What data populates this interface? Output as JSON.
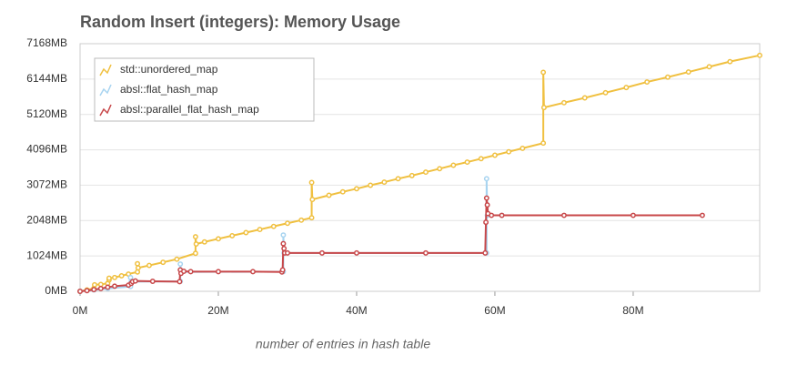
{
  "chart_data": {
    "type": "line",
    "title": "Random Insert (integers): Memory Usage",
    "x_label": "number of entries in hash table",
    "xlim": [
      0,
      98.3
    ],
    "ylim": [
      0,
      7168
    ],
    "xticks": [
      {
        "value": 0,
        "label": "0M"
      },
      {
        "value": 20,
        "label": "20M"
      },
      {
        "value": 40,
        "label": "40M"
      },
      {
        "value": 60,
        "label": "60M"
      },
      {
        "value": 80,
        "label": "80M"
      }
    ],
    "yticks": [
      {
        "value": 0,
        "label": "0MB"
      },
      {
        "value": 1024,
        "label": "1024MB"
      },
      {
        "value": 2048,
        "label": "2048MB"
      },
      {
        "value": 3072,
        "label": "3072MB"
      },
      {
        "value": 4096,
        "label": "4096MB"
      },
      {
        "value": 5120,
        "label": "5120MB"
      },
      {
        "value": 6144,
        "label": "6144MB"
      },
      {
        "value": 7168,
        "label": "7168MB"
      }
    ],
    "grid": true,
    "legend": "top-left",
    "series": [
      {
        "name": "std::unordered_map",
        "color": "#f0c040",
        "x": [
          0,
          1,
          2,
          2.1,
          3,
          4,
          4.2,
          4.2,
          5,
          6,
          7,
          8.3,
          8.3,
          8.4,
          10,
          12,
          14,
          16.7,
          16.7,
          16.8,
          18,
          20,
          22,
          24,
          26,
          28,
          30,
          32,
          33.5,
          33.5,
          33.6,
          36,
          38,
          40,
          42,
          44,
          46,
          48,
          50,
          52,
          54,
          56,
          58,
          60,
          62,
          64,
          67,
          67,
          67.1,
          70,
          73,
          76,
          79,
          82,
          85,
          88,
          91,
          94,
          98.3
        ],
        "values": [
          0,
          40,
          90,
          190,
          200,
          230,
          330,
          380,
          400,
          450,
          500,
          560,
          800,
          680,
          750,
          840,
          930,
          1100,
          1580,
          1370,
          1430,
          1520,
          1610,
          1700,
          1790,
          1880,
          1970,
          2060,
          2130,
          3150,
          2660,
          2780,
          2880,
          2970,
          3070,
          3160,
          3260,
          3350,
          3450,
          3550,
          3650,
          3740,
          3840,
          3940,
          4040,
          4140,
          4290,
          6340,
          5320,
          5460,
          5600,
          5750,
          5900,
          6060,
          6200,
          6350,
          6500,
          6650,
          6830
        ]
      },
      {
        "name": "absl::flat_hash_map",
        "color": "#a8d4f0",
        "x": [
          0,
          2,
          4,
          7.3,
          7.3,
          7.4,
          14.5,
          14.5,
          14.6,
          29.4,
          29.4,
          29.5,
          58.8,
          58.8,
          58.9,
          61
        ],
        "values": [
          0,
          40,
          80,
          140,
          400,
          280,
          290,
          790,
          560,
          570,
          1630,
          1110,
          1110,
          3260,
          2200,
          2200
        ]
      },
      {
        "name": "absl::parallel_flat_hash_map",
        "color": "#c8484a",
        "x": [
          0,
          1,
          2,
          3,
          4,
          5,
          7,
          7.4,
          7.6,
          8,
          10.5,
          14.4,
          14.5,
          14.6,
          15,
          16,
          20,
          25,
          29.2,
          29.3,
          29.4,
          29.5,
          29.6,
          30,
          35,
          40,
          50,
          58.6,
          58.7,
          58.8,
          58.9,
          59,
          59.5,
          61,
          70,
          80,
          90
        ],
        "values": [
          0,
          20,
          50,
          80,
          120,
          150,
          180,
          230,
          280,
          300,
          290,
          280,
          620,
          520,
          580,
          570,
          570,
          570,
          560,
          620,
          1380,
          1240,
          1110,
          1110,
          1110,
          1110,
          1110,
          1110,
          2000,
          2700,
          2500,
          2250,
          2200,
          2200,
          2200,
          2200,
          2200
        ]
      }
    ]
  }
}
